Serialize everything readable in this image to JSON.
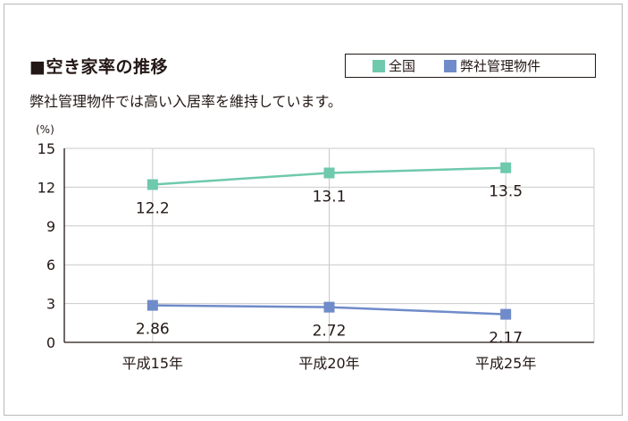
{
  "title": "■空き家率の推移",
  "subtitle": "弊社管理物件では高い入居率を維持しています。",
  "chart_data": {
    "type": "line",
    "title": "■空き家率の推移",
    "subtitle": "弊社管理物件では高い入居率を維持しています。",
    "categories": [
      "平成15年",
      "平成20年",
      "平成25年"
    ],
    "series": [
      {
        "name": "全国",
        "color": "#6ec9ad",
        "values": [
          12.2,
          13.1,
          13.5
        ],
        "labels": [
          "12.2",
          "13.1",
          "13.5"
        ]
      },
      {
        "name": "弊社管理物件",
        "color": "#6f8bc9",
        "values": [
          2.86,
          2.72,
          2.17
        ],
        "labels": [
          "2.86",
          "2.72",
          "2.17"
        ]
      }
    ],
    "ylabel": "(%)",
    "ylim": [
      0,
      15
    ],
    "yticks": [
      0,
      3,
      6,
      9,
      12,
      15
    ],
    "grid": true,
    "legend": "top-right"
  }
}
